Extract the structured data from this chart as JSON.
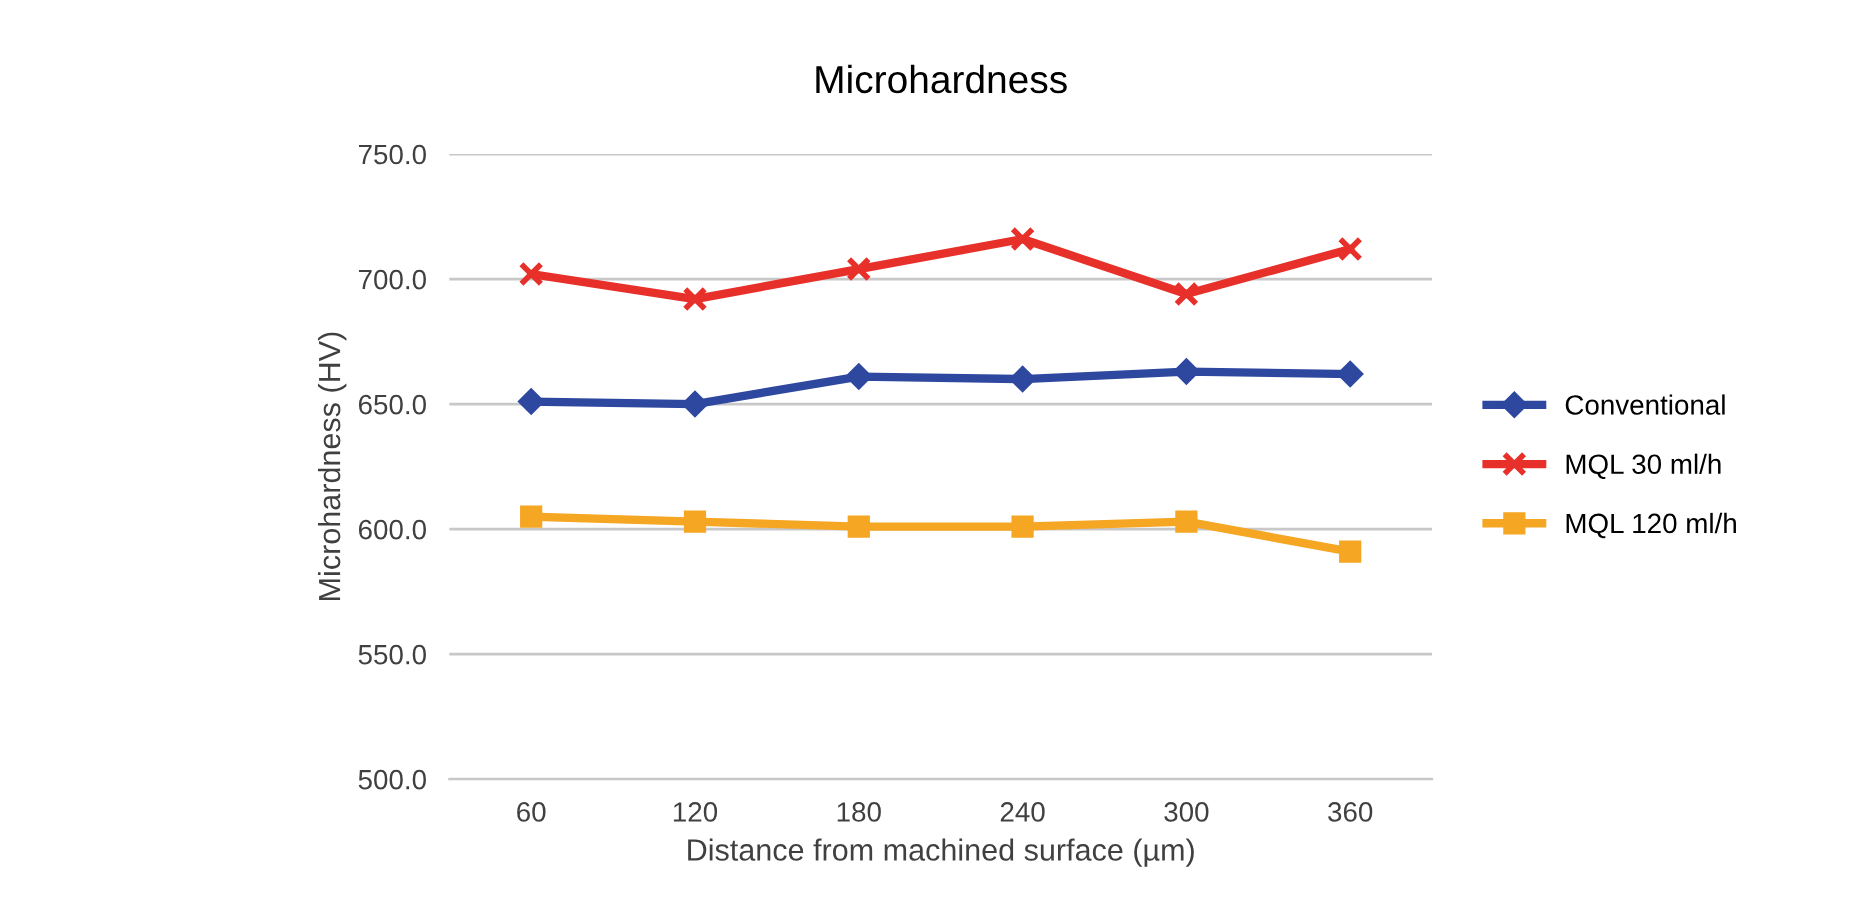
{
  "chart_data": {
    "type": "line",
    "title": "Microhardness",
    "xlabel": "Distance from machined surface (µm)",
    "ylabel": "Microhardness (HV)",
    "categories": [
      "60",
      "120",
      "180",
      "240",
      "300",
      "360"
    ],
    "series": [
      {
        "name": "Conventional",
        "color": "#2e48a0",
        "marker": "diamond",
        "values": [
          651,
          650,
          661,
          660,
          663,
          662
        ]
      },
      {
        "name": "MQL 30 ml/h",
        "color": "#e8302a",
        "marker": "cross",
        "values": [
          702,
          692,
          704,
          716,
          694,
          712
        ]
      },
      {
        "name": "MQL 120 ml/h",
        "color": "#f5a623",
        "marker": "square",
        "values": [
          605,
          603,
          601,
          601,
          603,
          591
        ]
      }
    ],
    "ylim": [
      500,
      750
    ],
    "yticks": [
      {
        "value": 500,
        "label": "500.0"
      },
      {
        "value": 550,
        "label": "550.0"
      },
      {
        "value": 600,
        "label": "600.0"
      },
      {
        "value": 650,
        "label": "650.0"
      },
      {
        "value": 700,
        "label": "700.0"
      },
      {
        "value": 750,
        "label": "750.0"
      }
    ],
    "grid": "y",
    "legend": "right",
    "line_style": "solid"
  }
}
